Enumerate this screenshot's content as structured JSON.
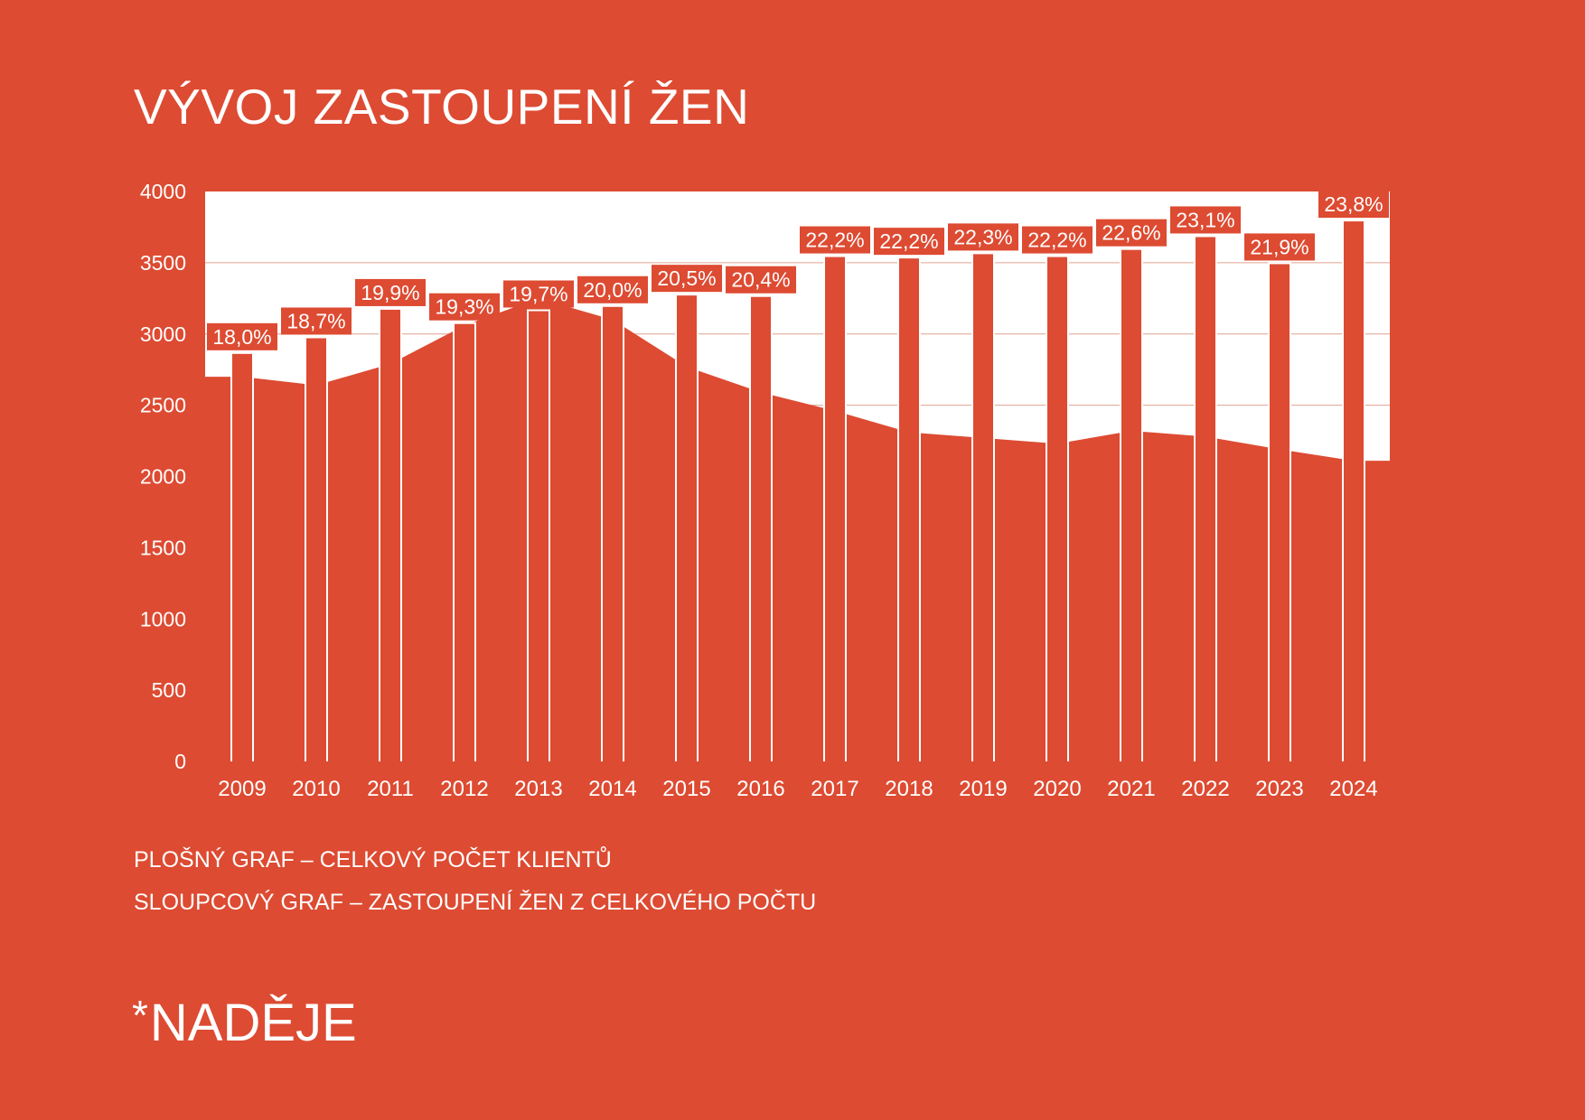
{
  "title": "VÝVOJ ZASTOUPENÍ ŽEN",
  "legend": {
    "area": "PLOŠNÝ GRAF – CELKOVÝ POČET KLIENTŮ",
    "bars": "SLOUPCOVÝ GRAF – ZASTOUPENÍ ŽEN Z CELKOVÉHO POČTU"
  },
  "brand": {
    "asterisk": "*",
    "name": "NADĚJE"
  },
  "colors": {
    "background": "#dd4b32",
    "plot_background": "#ffffff",
    "accent": "#dd4b32",
    "text": "#ffffff"
  },
  "chart_data": {
    "type": "bar",
    "categories": [
      "2009",
      "2010",
      "2011",
      "2012",
      "2013",
      "2014",
      "2015",
      "2016",
      "2017",
      "2018",
      "2019",
      "2020",
      "2021",
      "2022",
      "2023",
      "2024"
    ],
    "series": [
      {
        "chart": "area",
        "values": [
          2700,
          2640,
          2790,
          3060,
          3250,
          3100,
          2770,
          2590,
          2460,
          2310,
          2270,
          2230,
          2320,
          2280,
          2190,
          2110
        ]
      },
      {
        "chart": "bar",
        "values": [
          2860,
          2970,
          3170,
          3070,
          3160,
          3190,
          3270,
          3260,
          3540,
          3530,
          3560,
          3540,
          3590,
          3680,
          3490,
          3790
        ],
        "labels": [
          "18,0%",
          "18,7%",
          "19,9%",
          "19,3%",
          "19,7%",
          "20,0%",
          "20,5%",
          "20,4%",
          "22,2%",
          "22,2%",
          "22,3%",
          "22,2%",
          "22,6%",
          "23,1%",
          "21,9%",
          "23,8%"
        ]
      }
    ],
    "ylim": [
      0,
      4000
    ],
    "yticks": [
      0,
      500,
      1000,
      1500,
      2000,
      2500,
      3000,
      3500,
      4000
    ],
    "grid": true
  }
}
